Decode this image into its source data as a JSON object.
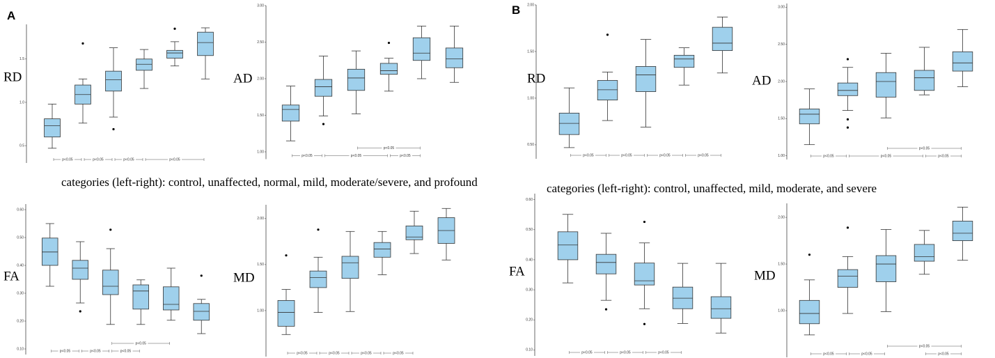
{
  "panels": [
    {
      "label": "A",
      "caption": "categories (left-right): control, unaffected, normal, mild, moderate/severe, and profound"
    },
    {
      "label": "B",
      "caption": "categories (left-right): control, unaffected, mild, moderate, and severe"
    }
  ],
  "chart_data": [
    {
      "type": "box",
      "ylabel": "RD",
      "color": "#9fd0ec",
      "ylim": [
        0.3,
        1.9
      ],
      "yticks": [
        1.5,
        {
          "value": 1.0,
          "label": "1.0"
        },
        0.5
      ],
      "boxes": [
        {
          "whislo": 0.47,
          "q1": 0.6,
          "med": 0.73,
          "q3": 0.81,
          "whishi": 0.98,
          "fliers": []
        },
        {
          "whislo": 0.76,
          "q1": 0.98,
          "med": 1.09,
          "q3": 1.2,
          "whishi": 1.27,
          "fliers": [
            1.68
          ]
        },
        {
          "whislo": 0.83,
          "q1": 1.13,
          "med": 1.26,
          "q3": 1.36,
          "whishi": 1.63,
          "fliers": [
            0.69
          ]
        },
        {
          "whislo": 1.16,
          "q1": 1.37,
          "med": 1.44,
          "q3": 1.5,
          "whishi": 1.61,
          "fliers": []
        },
        {
          "whislo": 1.42,
          "q1": 1.51,
          "med": 1.57,
          "q3": 1.6,
          "whishi": 1.7,
          "fliers": [
            1.85
          ]
        },
        {
          "whislo": 1.27,
          "q1": 1.54,
          "med": 1.69,
          "q3": 1.81,
          "whishi": 1.86,
          "fliers": []
        }
      ],
      "brackets": [
        [
          {
            "span": [
              0,
              1
            ],
            "label": "p<0.05"
          },
          {
            "span": [
              1,
              2
            ],
            "label": "p<0.05"
          },
          {
            "span": [
              2,
              3
            ],
            "label": "p<0.05"
          },
          {
            "span": [
              3,
              5
            ],
            "label": "p<0.05"
          }
        ]
      ]
    },
    {
      "type": "box",
      "ylabel": "AD",
      "color": "#9fd0ec",
      "ylim": [
        0.9,
        3.0
      ],
      "yticks": [
        {
          "value": 3.0,
          "label": "3.00"
        },
        {
          "value": 2.5,
          "label": "2.50"
        },
        {
          "value": 2.0,
          "label": "2.00"
        },
        {
          "value": 1.5,
          "label": "1.50"
        },
        {
          "value": 1.0,
          "label": "1.00"
        }
      ],
      "boxes": [
        {
          "whislo": 1.15,
          "q1": 1.42,
          "med": 1.58,
          "q3": 1.64,
          "whishi": 1.9,
          "fliers": []
        },
        {
          "whislo": 1.49,
          "q1": 1.76,
          "med": 1.89,
          "q3": 1.99,
          "whishi": 2.31,
          "fliers": [
            1.38
          ]
        },
        {
          "whislo": 1.52,
          "q1": 1.84,
          "med": 2.01,
          "q3": 2.13,
          "whishi": 2.38,
          "fliers": []
        },
        {
          "whislo": 1.83,
          "q1": 2.06,
          "med": 2.11,
          "q3": 2.21,
          "whishi": 2.28,
          "fliers": [
            2.49
          ]
        },
        {
          "whislo": 2.0,
          "q1": 2.25,
          "med": 2.35,
          "q3": 2.56,
          "whishi": 2.72,
          "fliers": []
        },
        {
          "whislo": 1.95,
          "q1": 2.15,
          "med": 2.27,
          "q3": 2.42,
          "whishi": 2.72,
          "fliers": []
        }
      ],
      "brackets": [
        [
          {
            "span": [
              0,
              1
            ],
            "label": "p<0.05"
          },
          {
            "span": [
              1,
              3
            ],
            "label": "p<0.05"
          },
          {
            "span": [
              3,
              4
            ],
            "label": "p<0.05"
          }
        ],
        [
          {
            "span": [
              2,
              4
            ],
            "label": "p<0.05"
          }
        ]
      ]
    },
    {
      "type": "box",
      "ylabel": "FA",
      "color": "#9fd0ec",
      "ylim": [
        0.08,
        0.62
      ],
      "yticks": [
        {
          "value": 0.6,
          "label": "0.60"
        },
        {
          "value": 0.5,
          "label": "0.50"
        },
        {
          "value": 0.4,
          "label": "0.40"
        },
        {
          "value": 0.3,
          "label": "0.30"
        },
        {
          "value": 0.2,
          "label": "0.20"
        },
        {
          "value": 0.1,
          "label": "0.10"
        }
      ],
      "boxes": [
        {
          "whislo": 0.325,
          "q1": 0.4,
          "med": 0.448,
          "q3": 0.498,
          "whishi": 0.55,
          "fliers": []
        },
        {
          "whislo": 0.265,
          "q1": 0.35,
          "med": 0.39,
          "q3": 0.418,
          "whishi": 0.485,
          "fliers": [
            0.235
          ]
        },
        {
          "whislo": 0.188,
          "q1": 0.295,
          "med": 0.325,
          "q3": 0.383,
          "whishi": 0.46,
          "fliers": [
            0.528
          ]
        },
        {
          "whislo": 0.188,
          "q1": 0.243,
          "med": 0.308,
          "q3": 0.33,
          "whishi": 0.348,
          "fliers": []
        },
        {
          "whislo": 0.203,
          "q1": 0.24,
          "med": 0.26,
          "q3": 0.323,
          "whishi": 0.39,
          "fliers": []
        },
        {
          "whislo": 0.155,
          "q1": 0.203,
          "med": 0.235,
          "q3": 0.263,
          "whishi": 0.278,
          "fliers": [
            0.363
          ]
        }
      ],
      "brackets": [
        [
          {
            "span": [
              0,
              1
            ],
            "label": "p<0.05"
          },
          {
            "span": [
              1,
              2
            ],
            "label": "p<0.05"
          },
          {
            "span": [
              2,
              3
            ],
            "label": "p<0.05"
          }
        ],
        [
          {
            "span": [
              2,
              4
            ],
            "label": "p<0.05"
          }
        ]
      ]
    },
    {
      "type": "box",
      "ylabel": "MD",
      "color": "#9fd0ec",
      "ylim": [
        0.5,
        2.15
      ],
      "yticks": [
        {
          "value": 2.0,
          "label": "2.00"
        },
        {
          "value": 1.5,
          "label": "1.50"
        },
        {
          "value": 1.0,
          "label": "1.00"
        }
      ],
      "boxes": [
        {
          "whislo": 0.74,
          "q1": 0.83,
          "med": 0.98,
          "q3": 1.11,
          "whishi": 1.23,
          "fliers": [
            1.6
          ]
        },
        {
          "whislo": 0.98,
          "q1": 1.25,
          "med": 1.36,
          "q3": 1.43,
          "whishi": 1.58,
          "fliers": [
            1.88
          ]
        },
        {
          "whislo": 0.99,
          "q1": 1.35,
          "med": 1.52,
          "q3": 1.59,
          "whishi": 1.86,
          "fliers": []
        },
        {
          "whislo": 1.39,
          "q1": 1.58,
          "med": 1.67,
          "q3": 1.74,
          "whishi": 1.86,
          "fliers": []
        },
        {
          "whislo": 1.62,
          "q1": 1.77,
          "med": 1.8,
          "q3": 1.92,
          "whishi": 2.08,
          "fliers": []
        },
        {
          "whislo": 1.55,
          "q1": 1.73,
          "med": 1.87,
          "q3": 2.01,
          "whishi": 2.11,
          "fliers": []
        }
      ],
      "brackets": [
        [
          {
            "span": [
              0,
              1
            ],
            "label": "p<0.05"
          },
          {
            "span": [
              1,
              2
            ],
            "label": "p<0.05"
          },
          {
            "span": [
              2,
              3
            ],
            "label": "p<0.05"
          },
          {
            "span": [
              3,
              4
            ],
            "label": "p<0.05"
          }
        ]
      ]
    },
    {
      "type": "box",
      "ylabel": "RD",
      "color": "#9fd0ec",
      "ylim": [
        0.35,
        2.0
      ],
      "yticks": [
        {
          "value": 2.0,
          "label": "2.00"
        },
        {
          "value": 1.5,
          "label": "1.50"
        },
        {
          "value": 1.0,
          "label": "1.00"
        },
        {
          "value": 0.5,
          "label": "0.50"
        }
      ],
      "boxes": [
        {
          "whislo": 0.47,
          "q1": 0.61,
          "med": 0.73,
          "q3": 0.84,
          "whishi": 1.11,
          "fliers": []
        },
        {
          "whislo": 0.76,
          "q1": 0.98,
          "med": 1.09,
          "q3": 1.19,
          "whishi": 1.28,
          "fliers": [
            1.68
          ]
        },
        {
          "whislo": 0.69,
          "q1": 1.07,
          "med": 1.25,
          "q3": 1.34,
          "whishi": 1.63,
          "fliers": []
        },
        {
          "whislo": 1.14,
          "q1": 1.33,
          "med": 1.42,
          "q3": 1.46,
          "whishi": 1.54,
          "fliers": []
        },
        {
          "whislo": 1.27,
          "q1": 1.51,
          "med": 1.59,
          "q3": 1.76,
          "whishi": 1.87,
          "fliers": []
        }
      ],
      "brackets": [
        [
          {
            "span": [
              0,
              1
            ],
            "label": "p<0.05"
          },
          {
            "span": [
              1,
              2
            ],
            "label": "p<0.05"
          },
          {
            "span": [
              2,
              3
            ],
            "label": "p<0.05"
          },
          {
            "span": [
              3,
              4
            ],
            "label": "p<0.05"
          }
        ]
      ]
    },
    {
      "type": "box",
      "ylabel": "AD",
      "color": "#9fd0ec",
      "ylim": [
        0.95,
        3.05
      ],
      "yticks": [
        {
          "value": 3.0,
          "label": "3.00"
        },
        {
          "value": 2.5,
          "label": "2.50"
        },
        {
          "value": 2.0,
          "label": "2.00"
        },
        {
          "value": 1.5,
          "label": "1.50"
        },
        {
          "value": 1.0,
          "label": "1.00"
        }
      ],
      "boxes": [
        {
          "whislo": 1.15,
          "q1": 1.43,
          "med": 1.56,
          "q3": 1.63,
          "whishi": 1.9,
          "fliers": []
        },
        {
          "whislo": 1.61,
          "q1": 1.81,
          "med": 1.88,
          "q3": 1.98,
          "whishi": 2.19,
          "fliers": [
            2.3,
            1.49,
            1.38
          ]
        },
        {
          "whislo": 1.51,
          "q1": 1.79,
          "med": 2.0,
          "q3": 2.12,
          "whishi": 2.38,
          "fliers": []
        },
        {
          "whislo": 1.82,
          "q1": 1.88,
          "med": 2.05,
          "q3": 2.15,
          "whishi": 2.46,
          "fliers": []
        },
        {
          "whislo": 1.93,
          "q1": 2.14,
          "med": 2.25,
          "q3": 2.4,
          "whishi": 2.7,
          "fliers": []
        }
      ],
      "brackets": [
        [
          {
            "span": [
              0,
              1
            ],
            "label": "p<0.05"
          },
          {
            "span": [
              1,
              3
            ],
            "label": "p<0.05"
          },
          {
            "span": [
              3,
              4
            ],
            "label": "p<0.05"
          }
        ],
        [
          {
            "span": [
              2,
              4
            ],
            "label": "p<0.05"
          }
        ]
      ]
    },
    {
      "type": "box",
      "ylabel": "FA",
      "color": "#9fd0ec",
      "ylim": [
        0.08,
        0.62
      ],
      "yticks": [
        {
          "value": 0.6,
          "label": "0.60"
        },
        {
          "value": 0.5,
          "label": "0.50"
        },
        {
          "value": 0.4,
          "label": "0.40"
        },
        {
          "value": 0.3,
          "label": "0.30"
        },
        {
          "value": 0.2,
          "label": "0.20"
        },
        {
          "value": 0.1,
          "label": "0.10"
        }
      ],
      "boxes": [
        {
          "whislo": 0.323,
          "q1": 0.4,
          "med": 0.449,
          "q3": 0.493,
          "whishi": 0.551,
          "fliers": []
        },
        {
          "whislo": 0.265,
          "q1": 0.353,
          "med": 0.391,
          "q3": 0.418,
          "whishi": 0.488,
          "fliers": [
            0.235
          ]
        },
        {
          "whislo": 0.237,
          "q1": 0.316,
          "med": 0.33,
          "q3": 0.389,
          "whishi": 0.456,
          "fliers": [
            0.186,
            0.526
          ]
        },
        {
          "whislo": 0.188,
          "q1": 0.237,
          "med": 0.272,
          "q3": 0.309,
          "whishi": 0.388,
          "fliers": []
        },
        {
          "whislo": 0.156,
          "q1": 0.205,
          "med": 0.237,
          "q3": 0.277,
          "whishi": 0.388,
          "fliers": []
        }
      ],
      "brackets": [
        [
          {
            "span": [
              0,
              1
            ],
            "label": "p<0.05"
          },
          {
            "span": [
              1,
              2
            ],
            "label": "p<0.05"
          },
          {
            "span": [
              2,
              3
            ],
            "label": "p<0.05"
          }
        ]
      ]
    },
    {
      "type": "box",
      "ylabel": "MD",
      "color": "#9fd0ec",
      "ylim": [
        0.5,
        2.15
      ],
      "yticks": [
        {
          "value": 2.0,
          "label": "2.00"
        },
        {
          "value": 1.5,
          "label": "1.50"
        },
        {
          "value": 1.0,
          "label": "1.00"
        }
      ],
      "boxes": [
        {
          "whislo": 0.74,
          "q1": 0.86,
          "med": 0.97,
          "q3": 1.11,
          "whishi": 1.33,
          "fliers": [
            1.6
          ]
        },
        {
          "whislo": 0.97,
          "q1": 1.25,
          "med": 1.37,
          "q3": 1.44,
          "whishi": 1.58,
          "fliers": [
            1.89
          ]
        },
        {
          "whislo": 0.99,
          "q1": 1.31,
          "med": 1.5,
          "q3": 1.59,
          "whishi": 1.87,
          "fliers": []
        },
        {
          "whislo": 1.39,
          "q1": 1.53,
          "med": 1.58,
          "q3": 1.71,
          "whishi": 1.86,
          "fliers": []
        },
        {
          "whislo": 1.54,
          "q1": 1.75,
          "med": 1.83,
          "q3": 1.96,
          "whishi": 2.11,
          "fliers": []
        }
      ],
      "brackets": [
        [
          {
            "span": [
              0,
              1
            ],
            "label": "p<0.05"
          },
          {
            "span": [
              1,
              2
            ],
            "label": "p<0.05"
          },
          {
            "span": [
              3,
              4
            ],
            "label": "p<0.05"
          }
        ],
        [
          {
            "span": [
              2,
              4
            ],
            "label": "p<0.05"
          }
        ]
      ]
    }
  ]
}
